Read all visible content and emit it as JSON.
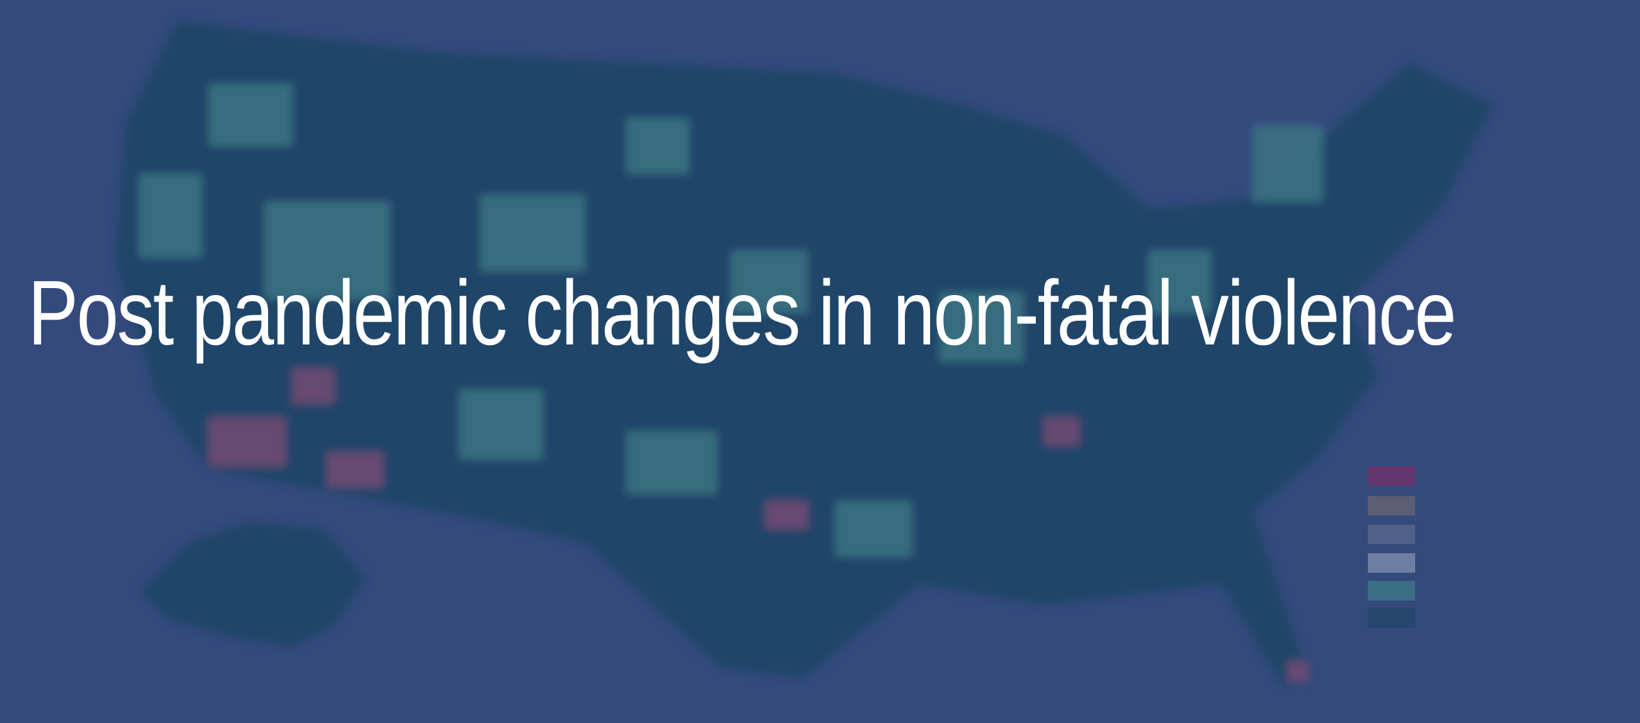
{
  "slide": {
    "title": "Post pandemic changes in non-fatal violence"
  }
}
